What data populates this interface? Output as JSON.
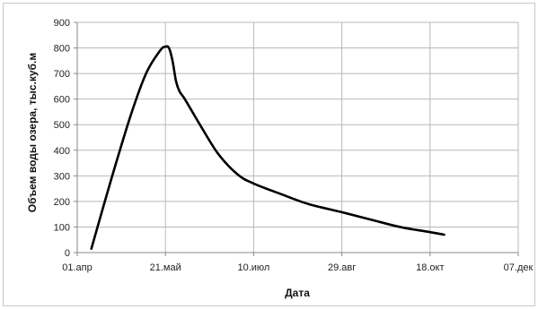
{
  "chart_data": {
    "type": "line",
    "title": "",
    "xlabel": "Дата",
    "ylabel": "Объем воды озера, тыс.куб.м",
    "x_tick_labels": [
      "01.апр",
      "21.май",
      "10.июл",
      "29.авг",
      "18.окт",
      "07.дек"
    ],
    "x_range": [
      "2000-04-01",
      "2000-12-07"
    ],
    "y_ticks": [
      0,
      100,
      200,
      300,
      400,
      500,
      600,
      700,
      800,
      900
    ],
    "y_tick_labels": [
      "0",
      "100",
      "200",
      "300",
      "400",
      "500",
      "600",
      "700",
      "800",
      "900"
    ],
    "ylim": [
      0,
      900
    ],
    "grid": "vertical and horizontal major gridlines",
    "legend": "none",
    "line_color": "#000000",
    "grid_color": "#b8b8b8",
    "series": [
      {
        "x": [
          "2000-04-09",
          "2000-04-20",
          "2000-05-01",
          "2000-05-10",
          "2000-05-18",
          "2000-05-21",
          "2000-05-23",
          "2000-05-25",
          "2000-05-27",
          "2000-05-29",
          "2000-06-01",
          "2000-06-10",
          "2000-06-20",
          "2000-07-01",
          "2000-07-10",
          "2000-07-25",
          "2000-08-10",
          "2000-08-29",
          "2000-09-15",
          "2000-10-01",
          "2000-10-18",
          "2000-10-26"
        ],
        "values": [
          15,
          280,
          530,
          700,
          790,
          805,
          800,
          750,
          670,
          630,
          600,
          495,
          385,
          305,
          270,
          230,
          190,
          158,
          128,
          100,
          80,
          70
        ]
      }
    ]
  }
}
